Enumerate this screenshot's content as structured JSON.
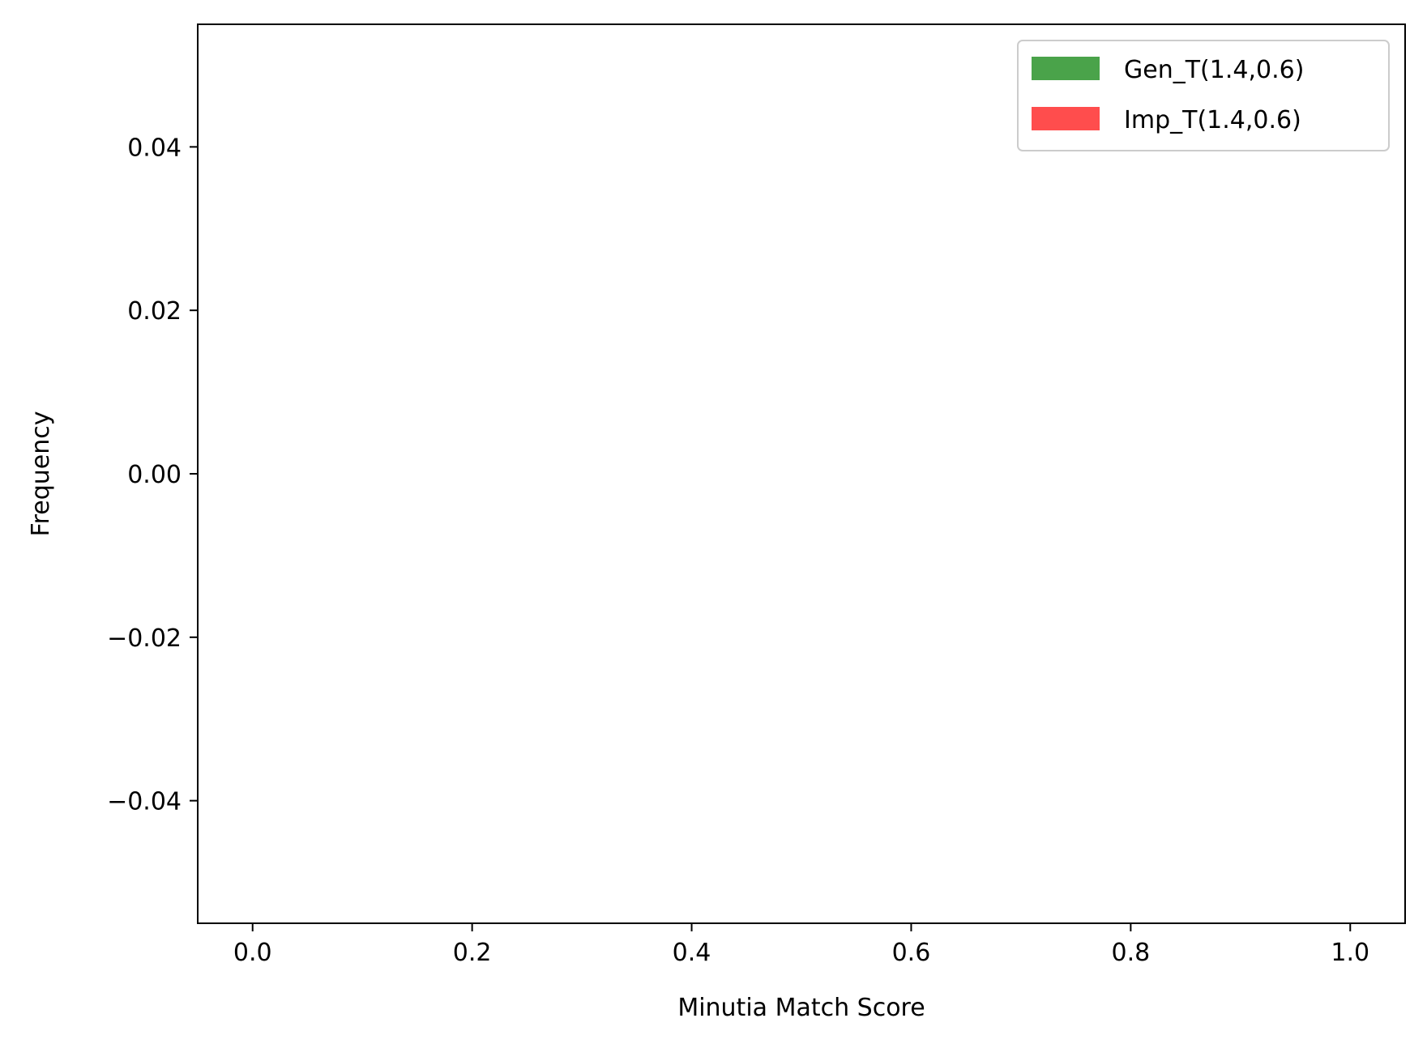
{
  "chart_data": {
    "type": "bar",
    "title": "",
    "xlabel": "Minutia Match Score",
    "ylabel": "Frequency",
    "xlim": [
      -0.05,
      1.05
    ],
    "ylim": [
      -0.055,
      0.055
    ],
    "xticks": [
      {
        "value": 0.0,
        "label": "0.0"
      },
      {
        "value": 0.2,
        "label": "0.2"
      },
      {
        "value": 0.4,
        "label": "0.4"
      },
      {
        "value": 0.6,
        "label": "0.6"
      },
      {
        "value": 0.8,
        "label": "0.8"
      },
      {
        "value": 1.0,
        "label": "1.0"
      }
    ],
    "yticks": [
      {
        "value": -0.04,
        "label": "−0.04"
      },
      {
        "value": -0.02,
        "label": "−0.02"
      },
      {
        "value": 0.0,
        "label": "0.00"
      },
      {
        "value": 0.02,
        "label": "0.02"
      },
      {
        "value": 0.04,
        "label": "0.04"
      }
    ],
    "grid": false,
    "legend_position": "top-right",
    "series": [
      {
        "name": "Gen_T(1.4,0.6)",
        "color": "#4aa34a",
        "values": []
      },
      {
        "name": "Imp_T(1.4,0.6)",
        "color": "#ff4d4d",
        "values": []
      }
    ]
  }
}
